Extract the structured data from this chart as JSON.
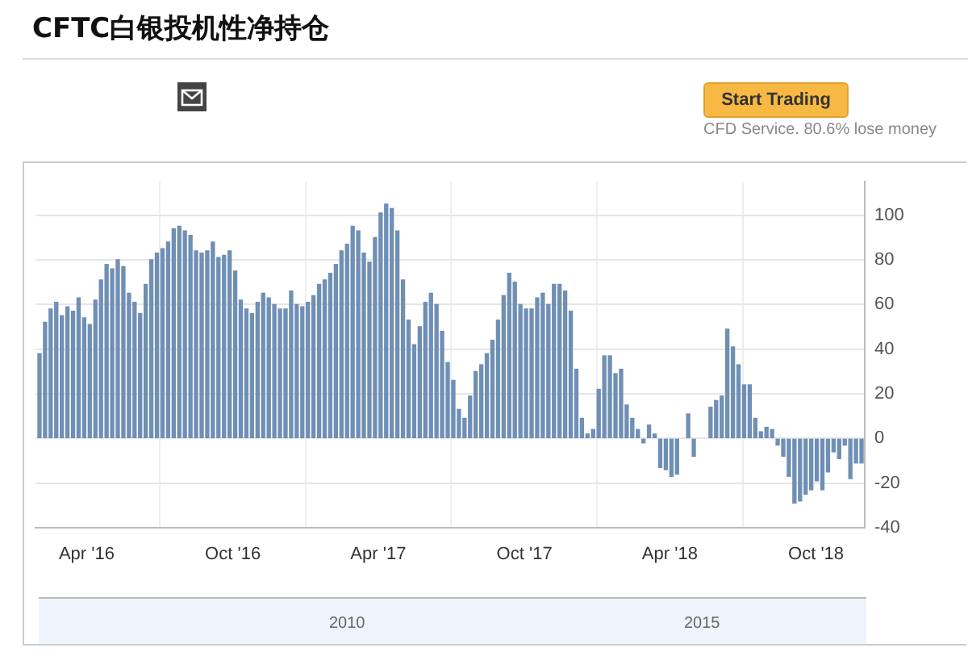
{
  "chart_data": {
    "type": "bar",
    "title": "CFTC白银投机性净持仓",
    "x": [
      "2016-02-02",
      "2016-02-09",
      "2016-02-16",
      "2016-02-23",
      "2016-03-01",
      "2016-03-08",
      "2016-03-15",
      "2016-03-22",
      "2016-03-29",
      "2016-04-05",
      "2016-04-12",
      "2016-04-19",
      "2016-04-26",
      "2016-05-03",
      "2016-05-10",
      "2016-05-17",
      "2016-05-24",
      "2016-05-31",
      "2016-06-07",
      "2016-06-14",
      "2016-06-21",
      "2016-06-28",
      "2016-07-05",
      "2016-07-12",
      "2016-07-19",
      "2016-07-26",
      "2016-08-02",
      "2016-08-09",
      "2016-08-16",
      "2016-08-23",
      "2016-08-30",
      "2016-09-06",
      "2016-09-13",
      "2016-09-20",
      "2016-09-27",
      "2016-10-04",
      "2016-10-11",
      "2016-10-18",
      "2016-10-25",
      "2016-11-01",
      "2016-11-08",
      "2016-11-15",
      "2016-11-22",
      "2016-11-29",
      "2016-12-06",
      "2016-12-13",
      "2016-12-20",
      "2016-12-27",
      "2017-01-03",
      "2017-01-10",
      "2017-01-17",
      "2017-01-24",
      "2017-01-31",
      "2017-02-07",
      "2017-02-14",
      "2017-02-21",
      "2017-02-28",
      "2017-03-07",
      "2017-03-14",
      "2017-03-21",
      "2017-03-28",
      "2017-04-04",
      "2017-04-11",
      "2017-04-18",
      "2017-04-25",
      "2017-05-02",
      "2017-05-09",
      "2017-05-16",
      "2017-05-23",
      "2017-05-30",
      "2017-06-06",
      "2017-06-13",
      "2017-06-20",
      "2017-06-27",
      "2017-07-04",
      "2017-07-11",
      "2017-07-18",
      "2017-07-25",
      "2017-08-01",
      "2017-08-08",
      "2017-08-15",
      "2017-08-22",
      "2017-08-29",
      "2017-09-05",
      "2017-09-12",
      "2017-09-19",
      "2017-09-26",
      "2017-10-03",
      "2017-10-10",
      "2017-10-17",
      "2017-10-24",
      "2017-10-31",
      "2017-11-07",
      "2017-11-14",
      "2017-11-21",
      "2017-11-28",
      "2017-12-05",
      "2017-12-12",
      "2017-12-19",
      "2017-12-26",
      "2018-01-02",
      "2018-01-09",
      "2018-01-16",
      "2018-01-23",
      "2018-01-30",
      "2018-02-06",
      "2018-02-13",
      "2018-02-20",
      "2018-02-27",
      "2018-03-06",
      "2018-03-13",
      "2018-03-20",
      "2018-03-27",
      "2018-04-03",
      "2018-04-10",
      "2018-04-17",
      "2018-04-24",
      "2018-05-01",
      "2018-05-08",
      "2018-05-15",
      "2018-05-22",
      "2018-05-29",
      "2018-06-05",
      "2018-06-12",
      "2018-06-19",
      "2018-06-26",
      "2018-07-03",
      "2018-07-10",
      "2018-07-17",
      "2018-07-24",
      "2018-07-31",
      "2018-08-07",
      "2018-08-14",
      "2018-08-21",
      "2018-08-28",
      "2018-09-04",
      "2018-09-11",
      "2018-09-18",
      "2018-09-25",
      "2018-10-02",
      "2018-10-09",
      "2018-10-16",
      "2018-10-23",
      "2018-10-30",
      "2018-11-06",
      "2018-11-13",
      "2018-11-20",
      "2018-11-27"
    ],
    "values": [
      38,
      52,
      58,
      61,
      55,
      59,
      57,
      63,
      54,
      51,
      62,
      71,
      78,
      76,
      80,
      77,
      65,
      61,
      56,
      69,
      80,
      83,
      85,
      88,
      94,
      95,
      93,
      91,
      84,
      83,
      84,
      88,
      81,
      82,
      84,
      75,
      62,
      58,
      56,
      61,
      65,
      63,
      60,
      58,
      58,
      66,
      60,
      59,
      61,
      64,
      69,
      71,
      74,
      78,
      84,
      87,
      95,
      93,
      83,
      79,
      90,
      101,
      105,
      103,
      93,
      71,
      53,
      42,
      50,
      61,
      65,
      60,
      48,
      34,
      26,
      13,
      9,
      19,
      30,
      33,
      38,
      44,
      53,
      64,
      74,
      70,
      60,
      58,
      58,
      63,
      65,
      60,
      69,
      69,
      66,
      57,
      31,
      9,
      2,
      4,
      22,
      37,
      37,
      29,
      31,
      15,
      9,
      4,
      -2,
      6,
      2,
      -13,
      -14,
      -17,
      -16,
      null,
      11,
      -8,
      null,
      null,
      14,
      17,
      19,
      49,
      41,
      33,
      24,
      24,
      9,
      3,
      5,
      4,
      -3,
      -8,
      -17,
      -29,
      -28,
      -25,
      -23,
      -19,
      -23,
      -15,
      -6,
      -9,
      -3,
      -18,
      -11,
      -11
    ],
    "color": "#6f8fb5",
    "xlim": [
      "2016-01-28",
      "2018-12-01"
    ],
    "xticks": [
      {
        "value": "2016-04-01",
        "label": "Apr '16"
      },
      {
        "value": "2016-10-01",
        "label": "Oct '16"
      },
      {
        "value": "2017-04-01",
        "label": "Apr '17"
      },
      {
        "value": "2017-10-01",
        "label": "Oct '17"
      },
      {
        "value": "2018-04-01",
        "label": "Apr '18"
      },
      {
        "value": "2018-10-01",
        "label": "Oct '18"
      }
    ],
    "ylim": [
      -40,
      115
    ],
    "yticks": [
      -40,
      -20,
      0,
      20,
      40,
      60,
      80,
      100
    ],
    "grid": true,
    "legend": false,
    "annotations": [
      "Start Trading",
      "CFD Service. 80.6% lose money",
      "2010",
      "2015"
    ]
  }
}
